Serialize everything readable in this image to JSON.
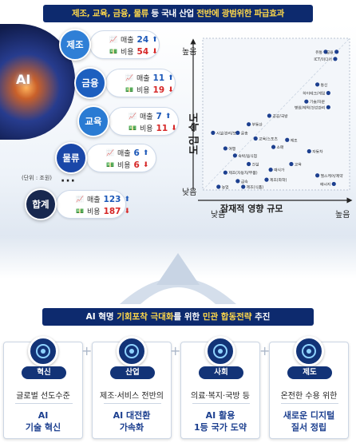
{
  "title": {
    "pre": "제조, 교육, 금융, 물류",
    "mid": " 등 국내 산업 ",
    "hl": "전반에 광범위한 파급효과"
  },
  "ai_label": "AI",
  "unit": "(단위 : 조원)",
  "ellipsis": "···",
  "colors": {
    "navy": "#0d2a6e",
    "accent": "#ffd84a",
    "up": "#1c58b8",
    "down": "#d62727"
  },
  "industries": [
    {
      "name": "제조",
      "sales_label": "매출",
      "sales": "24",
      "sales_dir": "⬆",
      "cost_label": "비용",
      "cost": "54",
      "cost_dir": "⬇"
    },
    {
      "name": "금융",
      "sales_label": "매출",
      "sales": "11",
      "sales_dir": "⬆",
      "cost_label": "비용",
      "cost": "19",
      "cost_dir": "⬇"
    },
    {
      "name": "교육",
      "sales_label": "매출",
      "sales": "7",
      "sales_dir": "⬆",
      "cost_label": "비용",
      "cost": "11",
      "cost_dir": "⬇"
    },
    {
      "name": "물류",
      "sales_label": "매출",
      "sales": "6",
      "sales_dir": "⬆",
      "cost_label": "비용",
      "cost": "6",
      "cost_dir": "⬇"
    },
    {
      "name": "합계",
      "sales_label": "매출",
      "sales": "123",
      "sales_dir": "⬆",
      "cost_label": "비용",
      "cost": "187",
      "cost_dir": "⬇"
    }
  ],
  "chart_data": {
    "type": "scatter",
    "title": "",
    "xlabel": "잠재적 영향 규모",
    "ylabel": "도입 속도",
    "x_low": "낮음",
    "x_high": "높음",
    "y_low": "낮음",
    "y_high": "높음",
    "xlim": [
      0,
      1
    ],
    "ylim": [
      0,
      1
    ],
    "points": [
      {
        "label": "유통",
        "x": 0.86,
        "y": 0.95
      },
      {
        "label": "금융",
        "x": 0.94,
        "y": 0.95
      },
      {
        "label": "ICT/미디어",
        "x": 0.93,
        "y": 0.9
      },
      {
        "label": "통신",
        "x": 0.8,
        "y": 0.72
      },
      {
        "label": "하이테크/게임",
        "x": 0.88,
        "y": 0.66
      },
      {
        "label": "기술/자문",
        "x": 0.72,
        "y": 0.6
      },
      {
        "label": "병원/제약/건강관리",
        "x": 0.88,
        "y": 0.56
      },
      {
        "label": "공공/국방",
        "x": 0.45,
        "y": 0.5
      },
      {
        "label": "부동산",
        "x": 0.3,
        "y": 0.44
      },
      {
        "label": "시설/관리/보수",
        "x": 0.04,
        "y": 0.38
      },
      {
        "label": "운송",
        "x": 0.22,
        "y": 0.38
      },
      {
        "label": "교육/스포츠",
        "x": 0.35,
        "y": 0.34
      },
      {
        "label": "제조",
        "x": 0.58,
        "y": 0.33
      },
      {
        "label": "소매",
        "x": 0.48,
        "y": 0.28
      },
      {
        "label": "여행",
        "x": 0.13,
        "y": 0.27
      },
      {
        "label": "숙박/음식점",
        "x": 0.2,
        "y": 0.22
      },
      {
        "label": "자동차",
        "x": 0.74,
        "y": 0.25
      },
      {
        "label": "건설",
        "x": 0.3,
        "y": 0.16
      },
      {
        "label": "교육",
        "x": 0.61,
        "y": 0.16
      },
      {
        "label": "헬스케어/제약",
        "x": 0.8,
        "y": 0.08
      },
      {
        "label": "예식가",
        "x": 0.46,
        "y": 0.12
      },
      {
        "label": "제조(자동차/부품)",
        "x": 0.13,
        "y": 0.1
      },
      {
        "label": "금속",
        "x": 0.22,
        "y": 0.04
      },
      {
        "label": "제조(화학)",
        "x": 0.43,
        "y": 0.05
      },
      {
        "label": "제조(식품)",
        "x": 0.26,
        "y": 0.0
      },
      {
        "label": "농업",
        "x": 0.08,
        "y": 0.0
      },
      {
        "label": "에너지",
        "x": 0.92,
        "y": 0.02
      }
    ]
  },
  "subtitle": {
    "pre": "AI 혁명 ",
    "b1": "기회포착 극대화",
    "mid": "를 위한 ",
    "b2": "민관 합동전략",
    "post": " 추진"
  },
  "cards": [
    {
      "tag": "혁신",
      "line1": "글로벌 선도수준",
      "line2a": "AI",
      "line2b": "기술 혁신",
      "icon": "chip-icon"
    },
    {
      "tag": "산업",
      "line1": "제조·서비스 전반의",
      "line2a": "AI 대전환",
      "line2b": "가속화",
      "icon": "factory-icon"
    },
    {
      "tag": "사회",
      "line1": "의료·복지·국방 등",
      "line2a": "AI 활용",
      "line2b": "1등 국가 도약",
      "icon": "head-icon"
    },
    {
      "tag": "제도",
      "line1": "온전한 수용 위한",
      "line2a": "새로운 디지털",
      "line2b": "질서 정립",
      "icon": "gear-icon"
    }
  ]
}
